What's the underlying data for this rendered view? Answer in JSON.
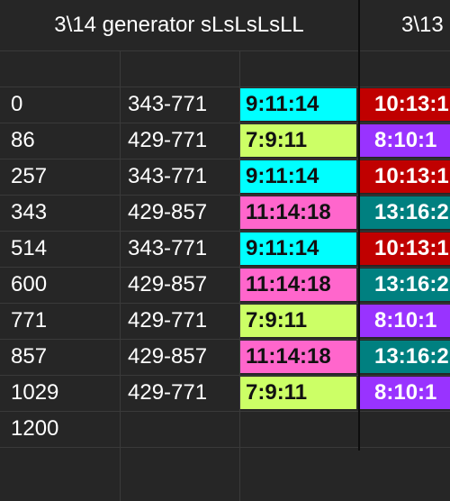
{
  "header": {
    "left_title": "3\\14 generator sLsLsLsLL",
    "right_title": "3\\13"
  },
  "colors": {
    "9:11:14": "#00ffff",
    "7:9:11": "#ccff66",
    "11:14:18": "#ff66cc",
    "10:13:1": "#c00000",
    "8:10:1": "#9933ff",
    "13:16:2": "#008080",
    "sheet_background": "#262626"
  },
  "rows": [
    {
      "step": "0",
      "range": "343-771",
      "chord": "9:11:14",
      "chord2": "10:13:1"
    },
    {
      "step": "86",
      "range": "429-771",
      "chord": "7:9:11",
      "chord2": "8:10:1"
    },
    {
      "step": "257",
      "range": "343-771",
      "chord": "9:11:14",
      "chord2": "10:13:1"
    },
    {
      "step": "343",
      "range": "429-857",
      "chord": "11:14:18",
      "chord2": "13:16:2"
    },
    {
      "step": "514",
      "range": "343-771",
      "chord": "9:11:14",
      "chord2": "10:13:1"
    },
    {
      "step": "600",
      "range": "429-857",
      "chord": "11:14:18",
      "chord2": "13:16:2"
    },
    {
      "step": "771",
      "range": "429-771",
      "chord": "7:9:11",
      "chord2": "8:10:1"
    },
    {
      "step": "857",
      "range": "429-857",
      "chord": "11:14:18",
      "chord2": "13:16:2"
    },
    {
      "step": "1029",
      "range": "429-771",
      "chord": "7:9:11",
      "chord2": "8:10:1"
    },
    {
      "step": "1200",
      "range": "",
      "chord": "",
      "chord2": ""
    }
  ]
}
